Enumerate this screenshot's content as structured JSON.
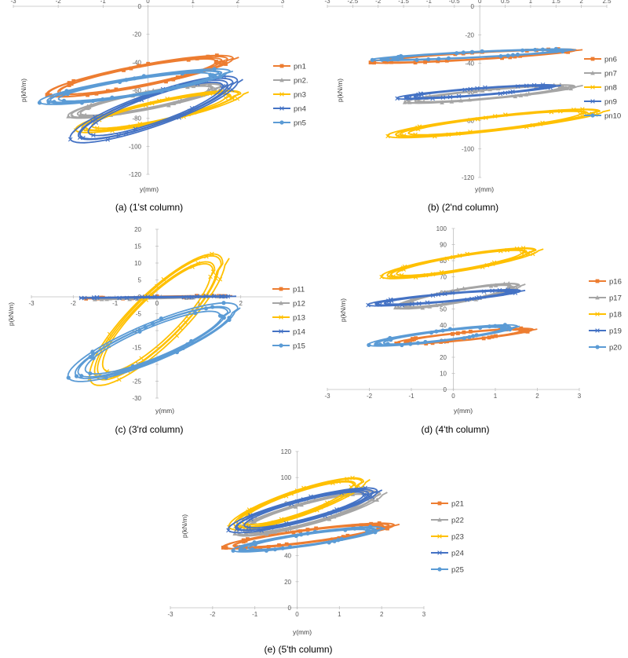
{
  "chart_data": [
    {
      "type": "line",
      "caption": "(a) (1'st column)",
      "xlabel": "y(mm)",
      "ylabel": "p(kN/m)",
      "xlim": [
        -3,
        3
      ],
      "ylim": [
        -120,
        0
      ],
      "xticks": [
        "-3",
        "-2",
        "-1",
        "0",
        "1",
        "2",
        "3"
      ],
      "yticks": [
        "0",
        "-20",
        "-40",
        "-60",
        "-80",
        "-100",
        "-120"
      ],
      "legend_position": "right",
      "series": [
        {
          "name": "pn1",
          "color": "#ED7D31",
          "marker": "square",
          "loop": {
            "xmin": -2.3,
            "xmax": 1.9,
            "ylo": -65,
            "yhi": -35,
            "cycles": 4
          }
        },
        {
          "name": "pn2.",
          "color": "#A5A5A5",
          "marker": "triangle",
          "loop": {
            "xmin": -1.8,
            "xmax": 1.7,
            "ylo": -80,
            "yhi": -55,
            "cycles": 4
          }
        },
        {
          "name": "pn3",
          "color": "#FFC000",
          "marker": "x",
          "loop": {
            "xmin": -1.6,
            "xmax": 2.1,
            "ylo": -90,
            "yhi": -60,
            "cycles": 4
          }
        },
        {
          "name": "pn4",
          "color": "#4472C4",
          "marker": "x",
          "loop": {
            "xmin": -1.7,
            "xmax": 2.0,
            "ylo": -97,
            "yhi": -50,
            "cycles": 4
          }
        },
        {
          "name": "pn5",
          "color": "#5B9BD5",
          "marker": "circle",
          "loop": {
            "xmin": -2.4,
            "xmax": 1.8,
            "ylo": -70,
            "yhi": -45,
            "cycles": 4
          }
        }
      ]
    },
    {
      "type": "line",
      "caption": "(b) (2'nd column)",
      "xlabel": "y(mm)",
      "ylabel": "p(kN/m)",
      "xlim": [
        -3,
        2.5
      ],
      "ylim": [
        -120,
        0
      ],
      "xticks": [
        "-3",
        "-2.5",
        "-2",
        "-1.5",
        "-1",
        "-0.5",
        "0",
        "0.5",
        "1",
        "1.5",
        "2",
        "2.5"
      ],
      "yticks": [
        "0",
        "-20",
        "-40",
        "-60",
        "-80",
        "-100",
        "-120"
      ],
      "legend_position": "right",
      "series": [
        {
          "name": "pn6",
          "color": "#ED7D31",
          "marker": "square",
          "loop": {
            "xmin": -2.2,
            "xmax": 1.9,
            "ylo": -40,
            "yhi": -30,
            "cycles": 4
          }
        },
        {
          "name": "pn7",
          "color": "#A5A5A5",
          "marker": "triangle",
          "loop": {
            "xmin": -1.5,
            "xmax": 1.9,
            "ylo": -68,
            "yhi": -55,
            "cycles": 4
          }
        },
        {
          "name": "pn8",
          "color": "#FFC000",
          "marker": "x",
          "loop": {
            "xmin": -1.8,
            "xmax": 2.4,
            "ylo": -92,
            "yhi": -72,
            "cycles": 4
          }
        },
        {
          "name": "pn9",
          "color": "#4472C4",
          "marker": "x",
          "loop": {
            "xmin": -1.6,
            "xmax": 1.5,
            "ylo": -65,
            "yhi": -55,
            "cycles": 4
          }
        },
        {
          "name": "pn10",
          "color": "#5B9BD5",
          "marker": "circle",
          "loop": {
            "xmin": -2.1,
            "xmax": 1.8,
            "ylo": -38,
            "yhi": -30,
            "cycles": 4
          }
        }
      ]
    },
    {
      "type": "line",
      "caption": "(c) (3'rd column)",
      "xlabel": "y(mm)",
      "ylabel": "p(kN/m)",
      "xlim": [
        -3,
        3
      ],
      "ylim": [
        -30,
        20
      ],
      "xticks": [
        "-3",
        "-2",
        "-1",
        "0",
        "1",
        "2"
      ],
      "yticks": [
        "20",
        "15",
        "10",
        "5",
        "0",
        "-5",
        "-10",
        "-15",
        "-20",
        "-25",
        "-30"
      ],
      "legend_position": "right",
      "series": [
        {
          "name": "p11",
          "color": "#ED7D31",
          "marker": "square",
          "loop": {
            "xmin": -1.8,
            "xmax": 1.8,
            "ylo": -0.6,
            "yhi": 0.4,
            "cycles": 3
          }
        },
        {
          "name": "p12",
          "color": "#A5A5A5",
          "marker": "triangle",
          "loop": {
            "xmin": -1.6,
            "xmax": 1.8,
            "ylo": -0.8,
            "yhi": 0.3,
            "cycles": 3
          }
        },
        {
          "name": "p13",
          "color": "#FFC000",
          "marker": "x",
          "loop": {
            "xmin": -1.6,
            "xmax": 1.6,
            "ylo": -26,
            "yhi": 13,
            "cycles": 4
          }
        },
        {
          "name": "p14",
          "color": "#4472C4",
          "marker": "x",
          "loop": {
            "xmin": -2.0,
            "xmax": 1.9,
            "ylo": -0.4,
            "yhi": 0.2,
            "cycles": 3
          }
        },
        {
          "name": "p15",
          "color": "#5B9BD5",
          "marker": "circle",
          "loop": {
            "xmin": -2.1,
            "xmax": 1.9,
            "ylo": -25,
            "yhi": -2,
            "cycles": 4
          }
        }
      ]
    },
    {
      "type": "line",
      "caption": "(d) (4'th column)",
      "xlabel": "y(mm)",
      "ylabel": "p(kN/m)",
      "xlim": [
        -3,
        3
      ],
      "ylim": [
        0,
        100
      ],
      "xticks": [
        "-3",
        "-2",
        "-1",
        "0",
        "1",
        "2",
        "3"
      ],
      "yticks": [
        "100",
        "90",
        "80",
        "70",
        "60",
        "50",
        "40",
        "30",
        "20",
        "10",
        "0"
      ],
      "legend_position": "right",
      "series": [
        {
          "name": "p16",
          "color": "#ED7D31",
          "marker": "square",
          "loop": {
            "xmin": -1.4,
            "xmax": 1.9,
            "ylo": 28,
            "yhi": 38,
            "cycles": 4
          }
        },
        {
          "name": "p17",
          "color": "#A5A5A5",
          "marker": "triangle",
          "loop": {
            "xmin": -1.4,
            "xmax": 1.6,
            "ylo": 50,
            "yhi": 66,
            "cycles": 4
          }
        },
        {
          "name": "p18",
          "color": "#FFC000",
          "marker": "x",
          "loop": {
            "xmin": -1.7,
            "xmax": 2.0,
            "ylo": 69,
            "yhi": 88,
            "cycles": 4
          }
        },
        {
          "name": "p19",
          "color": "#4472C4",
          "marker": "x",
          "loop": {
            "xmin": -2.0,
            "xmax": 1.6,
            "ylo": 52,
            "yhi": 62,
            "cycles": 4
          }
        },
        {
          "name": "p20",
          "color": "#5B9BD5",
          "marker": "circle",
          "loop": {
            "xmin": -2.0,
            "xmax": 1.5,
            "ylo": 27,
            "yhi": 40,
            "cycles": 4
          }
        }
      ]
    },
    {
      "type": "line",
      "caption": "(e) (5'th column)",
      "xlabel": "y(mm)",
      "ylabel": "p(kN/m)",
      "xlim": [
        -3,
        3
      ],
      "ylim": [
        0,
        120
      ],
      "xticks": [
        "-3",
        "-2",
        "-1",
        "0",
        "1",
        "2",
        "3"
      ],
      "yticks": [
        "120",
        "100",
        "80",
        "60",
        "40",
        "20",
        "0"
      ],
      "legend_position": "right",
      "series": [
        {
          "name": "p21",
          "color": "#ED7D31",
          "marker": "square",
          "loop": {
            "xmin": -1.8,
            "xmax": 2.3,
            "ylo": 45,
            "yhi": 65,
            "cycles": 4
          }
        },
        {
          "name": "p22",
          "color": "#A5A5A5",
          "marker": "triangle",
          "loop": {
            "xmin": -1.5,
            "xmax": 2.0,
            "ylo": 55,
            "yhi": 90,
            "cycles": 4
          }
        },
        {
          "name": "p23",
          "color": "#FFC000",
          "marker": "x",
          "loop": {
            "xmin": -1.6,
            "xmax": 1.6,
            "ylo": 60,
            "yhi": 100,
            "cycles": 4
          }
        },
        {
          "name": "p24",
          "color": "#4472C4",
          "marker": "x",
          "loop": {
            "xmin": -1.6,
            "xmax": 1.9,
            "ylo": 58,
            "yhi": 92,
            "cycles": 4
          }
        },
        {
          "name": "p25",
          "color": "#5B9BD5",
          "marker": "circle",
          "loop": {
            "xmin": -1.5,
            "xmax": 2.0,
            "ylo": 43,
            "yhi": 62,
            "cycles": 4
          }
        }
      ]
    }
  ]
}
